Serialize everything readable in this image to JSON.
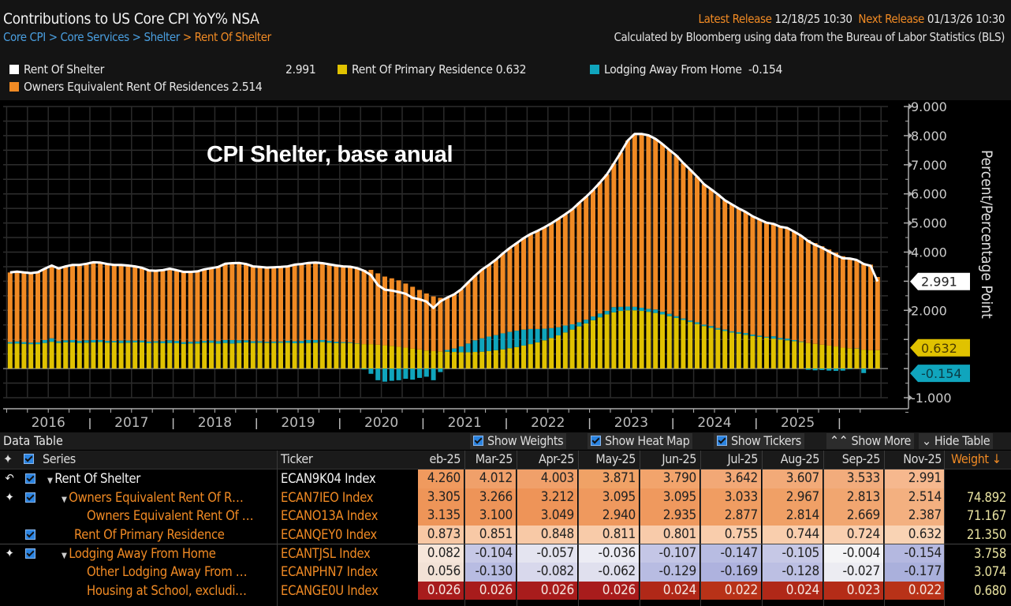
{
  "header": {
    "title": "Contributions to US Core CPI YoY% NSA",
    "breadcrumb": [
      "Core CPI",
      "Core Services",
      "Shelter",
      "Rent Of Shelter"
    ],
    "breadcrumb_sep": ">",
    "latest_release_label": "Latest Release",
    "latest_release_value": "12/18/25 10:30",
    "next_release_label": "Next Release",
    "next_release_value": "01/13/26 10:30",
    "source_note": "Calculated by Bloomberg using data from the Bureau of Labor Statistics (BLS)"
  },
  "legend": [
    {
      "name": "Rent Of Shelter",
      "value": "2.991",
      "color": "#ffffff"
    },
    {
      "name": "Rent Of Primary Residence",
      "value": "0.632",
      "color": "#e0c200"
    },
    {
      "name": "Lodging Away From Home",
      "value": "-0.154",
      "color": "#10a5bd"
    },
    {
      "name": "Owners Equivalent Rent Of Residences",
      "value": "2.514",
      "color": "#f08a24"
    }
  ],
  "overlay_title": "CPI Shelter, base anual",
  "chart_data": {
    "type": "bar",
    "stacked": true,
    "title": "Contributions to US Core CPI YoY% NSA",
    "annotation": "CPI Shelter, base anual",
    "xlabel": "",
    "ylabel": "Percent/Percentage Point",
    "ylim": [
      -1.0,
      9.0
    ],
    "yticks": [
      "9.000",
      "8.000",
      "7.000",
      "6.000",
      "5.000",
      "4.000",
      "3.000",
      "2.000",
      "1.000",
      "0.000",
      "-1.000"
    ],
    "xtick_labels": [
      "2016",
      "2017",
      "2018",
      "2019",
      "2020",
      "2021",
      "2022",
      "2023",
      "2024",
      "2025"
    ],
    "x_start": "2016-01",
    "frequency": "monthly",
    "grid": true,
    "legend_position": "top",
    "last_value_tags": [
      {
        "series": "Rent Of Shelter",
        "value": "2.991",
        "color": "#ffffff"
      },
      {
        "series": "Rent Of Primary Residence",
        "value": "0.632",
        "color": "#e0c200"
      },
      {
        "series": "Lodging Away From Home",
        "value": "-0.154",
        "color": "#10a5bd"
      }
    ],
    "series": [
      {
        "name": "Rent Of Primary Residence",
        "kind": "bar",
        "color": "#e0c200",
        "values": [
          0.86,
          0.86,
          0.85,
          0.84,
          0.84,
          0.88,
          0.92,
          0.88,
          0.9,
          0.9,
          0.88,
          0.89,
          0.9,
          0.91,
          0.89,
          0.9,
          0.88,
          0.89,
          0.9,
          0.9,
          0.87,
          0.89,
          0.87,
          0.88,
          0.87,
          0.85,
          0.86,
          0.86,
          0.89,
          0.89,
          0.86,
          0.88,
          0.86,
          0.88,
          0.9,
          0.88,
          0.89,
          0.88,
          0.88,
          0.89,
          0.89,
          0.87,
          0.87,
          0.88,
          0.89,
          0.91,
          0.89,
          0.87,
          0.88,
          0.88,
          0.86,
          0.84,
          0.84,
          0.82,
          0.8,
          0.78,
          0.75,
          0.72,
          0.69,
          0.66,
          0.62,
          0.6,
          0.59,
          0.58,
          0.57,
          0.56,
          0.56,
          0.57,
          0.58,
          0.6,
          0.63,
          0.66,
          0.7,
          0.74,
          0.79,
          0.84,
          0.9,
          0.97,
          1.05,
          1.14,
          1.24,
          1.34,
          1.45,
          1.55,
          1.66,
          1.76,
          1.86,
          1.93,
          1.98,
          2.0,
          2.0,
          1.98,
          1.95,
          1.91,
          1.86,
          1.8,
          1.74,
          1.67,
          1.6,
          1.53,
          1.46,
          1.4,
          1.34,
          1.29,
          1.24,
          1.2,
          1.16,
          1.12,
          1.09,
          1.06,
          1.03,
          1.0,
          0.97,
          0.94,
          0.91,
          0.88,
          0.85,
          0.82,
          0.79,
          0.76,
          0.72,
          0.7,
          0.68,
          0.65,
          0.63,
          0.632
        ]
      },
      {
        "name": "Owners Equivalent Rent Of Residences",
        "kind": "bar",
        "color": "#f08a24",
        "values": [
          2.39,
          2.4,
          2.39,
          2.39,
          2.41,
          2.45,
          2.5,
          2.5,
          2.54,
          2.58,
          2.61,
          2.63,
          2.67,
          2.66,
          2.64,
          2.61,
          2.6,
          2.58,
          2.55,
          2.5,
          2.44,
          2.42,
          2.44,
          2.46,
          2.43,
          2.41,
          2.4,
          2.41,
          2.46,
          2.49,
          2.55,
          2.62,
          2.64,
          2.66,
          2.62,
          2.57,
          2.55,
          2.55,
          2.55,
          2.56,
          2.56,
          2.63,
          2.64,
          2.65,
          2.66,
          2.64,
          2.63,
          2.62,
          2.6,
          2.6,
          2.58,
          2.55,
          2.55,
          2.45,
          2.36,
          2.32,
          2.28,
          2.2,
          2.12,
          2.04,
          1.96,
          1.88,
          1.84,
          1.8,
          1.86,
          1.96,
          2.1,
          2.22,
          2.36,
          2.46,
          2.59,
          2.74,
          2.88,
          3.01,
          3.14,
          3.26,
          3.37,
          3.48,
          3.6,
          3.72,
          3.82,
          3.95,
          4.1,
          4.22,
          4.34,
          4.5,
          4.69,
          4.93,
          5.3,
          5.7,
          5.94,
          5.97,
          5.96,
          5.86,
          5.76,
          5.63,
          5.52,
          5.34,
          5.18,
          5.0,
          4.82,
          4.7,
          4.58,
          4.44,
          4.36,
          4.25,
          4.16,
          4.06,
          3.99,
          3.92,
          3.86,
          3.82,
          3.8,
          3.72,
          3.63,
          3.54,
          3.46,
          3.38,
          3.3,
          3.22,
          3.14,
          3.1,
          3.04,
          2.96,
          2.94,
          2.514
        ]
      },
      {
        "name": "Lodging Away From Home",
        "kind": "bar",
        "color": "#10a5bd",
        "values": [
          0.05,
          0.07,
          0.06,
          0.05,
          0.06,
          0.1,
          0.12,
          0.06,
          0.07,
          0.08,
          0.07,
          0.08,
          0.08,
          0.07,
          0.06,
          0.05,
          0.08,
          0.07,
          0.06,
          0.06,
          0.06,
          0.05,
          0.07,
          0.09,
          0.08,
          0.06,
          0.06,
          0.07,
          0.06,
          0.07,
          0.08,
          0.1,
          0.12,
          0.09,
          0.07,
          0.06,
          0.05,
          0.04,
          0.05,
          0.04,
          0.06,
          0.07,
          0.08,
          0.1,
          0.09,
          0.07,
          0.06,
          0.05,
          0.03,
          0.02,
          0.01,
          -0.03,
          -0.18,
          -0.4,
          -0.45,
          -0.42,
          -0.4,
          -0.35,
          -0.38,
          -0.32,
          -0.28,
          -0.4,
          -0.12,
          0.06,
          0.12,
          0.2,
          0.3,
          0.4,
          0.46,
          0.5,
          0.52,
          0.55,
          0.56,
          0.56,
          0.55,
          0.52,
          0.46,
          0.4,
          0.34,
          0.28,
          0.24,
          0.18,
          0.14,
          0.13,
          0.13,
          0.13,
          0.12,
          0.18,
          0.14,
          0.13,
          0.12,
          0.11,
          0.1,
          0.12,
          0.09,
          0.08,
          0.06,
          0.05,
          0.05,
          0.06,
          0.05,
          0.06,
          0.05,
          0.05,
          0.04,
          0.05,
          0.06,
          0.05,
          0.04,
          0.03,
          0.08,
          0.05,
          0.06,
          0.04,
          0.02,
          -0.04,
          -0.06,
          -0.05,
          -0.07,
          -0.08,
          -0.07,
          -0.02,
          0.01,
          -0.154
        ]
      },
      {
        "name": "Rent Of Shelter",
        "kind": "line",
        "color": "#ffffff",
        "values": [
          3.3,
          3.33,
          3.3,
          3.28,
          3.31,
          3.43,
          3.54,
          3.44,
          3.51,
          3.56,
          3.56,
          3.6,
          3.65,
          3.64,
          3.59,
          3.56,
          3.56,
          3.54,
          3.51,
          3.46,
          3.37,
          3.36,
          3.38,
          3.43,
          3.38,
          3.32,
          3.32,
          3.34,
          3.41,
          3.45,
          3.49,
          3.6,
          3.62,
          3.63,
          3.59,
          3.51,
          3.49,
          3.47,
          3.48,
          3.49,
          3.51,
          3.57,
          3.59,
          3.63,
          3.64,
          3.62,
          3.58,
          3.54,
          3.51,
          3.5,
          3.45,
          3.36,
          3.21,
          2.87,
          2.71,
          2.68,
          2.63,
          2.57,
          2.43,
          2.38,
          2.3,
          2.08,
          2.31,
          2.44,
          2.55,
          2.72,
          2.96,
          3.19,
          3.4,
          3.56,
          3.74,
          3.95,
          4.14,
          4.31,
          4.48,
          4.62,
          4.73,
          4.85,
          4.99,
          5.14,
          5.3,
          5.47,
          5.69,
          5.9,
          6.13,
          6.39,
          6.67,
          7.04,
          7.42,
          7.83,
          8.06,
          8.06,
          8.01,
          7.89,
          7.71,
          7.51,
          7.32,
          7.06,
          6.83,
          6.59,
          6.33,
          6.16,
          5.98,
          5.78,
          5.64,
          5.5,
          5.38,
          5.23,
          5.12,
          5.01,
          4.97,
          4.87,
          4.83,
          4.7,
          4.56,
          4.38,
          4.25,
          4.15,
          4.02,
          3.9,
          3.79,
          3.78,
          3.73,
          3.59,
          3.53,
          2.991
        ]
      }
    ]
  },
  "table": {
    "title": "Data Table",
    "buttons": [
      {
        "label": "Show Weights",
        "checked": true
      },
      {
        "label": "Show Heat Map",
        "checked": true
      },
      {
        "label": "Show Tickers",
        "checked": true
      },
      {
        "label": "Show More",
        "icon": "chevrons-up-icon"
      },
      {
        "label": "Hide Table",
        "icon": "chevrons-down-icon"
      }
    ],
    "columns": {
      "series": "Series",
      "ticker": "Ticker",
      "periods": [
        "eb-25",
        "Mar-25",
        "Apr-25",
        "May-25",
        "Jun-25",
        "Jul-25",
        "Aug-25",
        "Sep-25",
        "Nov-25"
      ],
      "weight": "Weight ↓"
    },
    "rows": [
      {
        "name": "Rent Of Shelter",
        "ticker": "ECAN9K04 Index",
        "values": [
          "4.260",
          "4.012",
          "4.003",
          "3.871",
          "3.790",
          "3.642",
          "3.607",
          "3.533",
          "2.991"
        ],
        "weight": "",
        "icon": "undo-icon",
        "checked": true,
        "expandable": true,
        "indent": 0,
        "color": "#f2f2f2",
        "heat": "orange-dark"
      },
      {
        "name": "Owners Equivalent Rent Of R…",
        "ticker": "ECAN7IEO Index",
        "values": [
          "3.305",
          "3.266",
          "3.212",
          "3.095",
          "3.095",
          "3.033",
          "2.967",
          "2.813",
          "2.514"
        ],
        "weight": "74.892",
        "icon": "crosshair-icon",
        "checked": true,
        "expandable": true,
        "indent": 1,
        "color": "#f08a24",
        "heat": "orange-mid"
      },
      {
        "name": "Owners Equivalent Rent Of …",
        "ticker": "ECANO13A Index",
        "values": [
          "3.135",
          "3.100",
          "3.049",
          "2.940",
          "2.935",
          "2.877",
          "2.814",
          "2.669",
          "2.387"
        ],
        "weight": "71.167",
        "icon": "",
        "checked": false,
        "expandable": false,
        "indent": 2,
        "color": "#f08a24",
        "heat": "orange-mid"
      },
      {
        "name": "Rent Of Primary Residence",
        "ticker": "ECANQEY0 Index",
        "values": [
          "0.873",
          "0.851",
          "0.848",
          "0.811",
          "0.801",
          "0.755",
          "0.744",
          "0.724",
          "0.632"
        ],
        "weight": "21.350",
        "icon": "",
        "checked": true,
        "expandable": false,
        "indent": 1,
        "color": "#f08a24",
        "heat": "orange-light"
      },
      {
        "name": "Lodging Away From Home",
        "ticker": "ECANTJSL Index",
        "values": [
          "0.082",
          "-0.104",
          "-0.057",
          "-0.036",
          "-0.107",
          "-0.147",
          "-0.105",
          "-0.004",
          "-0.154"
        ],
        "weight": "3.758",
        "icon": "crosshair-icon",
        "checked": true,
        "expandable": true,
        "indent": 1,
        "color": "#f08a24",
        "heat": "blue"
      },
      {
        "name": "Other Lodging Away From …",
        "ticker": "ECANPHN7 Index",
        "values": [
          "0.056",
          "-0.130",
          "-0.082",
          "-0.062",
          "-0.129",
          "-0.169",
          "-0.128",
          "-0.027",
          "-0.177"
        ],
        "weight": "3.074",
        "icon": "",
        "checked": false,
        "expandable": false,
        "indent": 2,
        "color": "#f08a24",
        "heat": "blue"
      },
      {
        "name": "Housing at School, excludi…",
        "ticker": "ECANGE0U Index",
        "values": [
          "0.026",
          "0.026",
          "0.026",
          "0.026",
          "0.024",
          "0.022",
          "0.024",
          "0.023",
          "0.022"
        ],
        "weight": "0.680",
        "icon": "",
        "checked": false,
        "expandable": false,
        "indent": 2,
        "color": "#f08a24",
        "heat": "red"
      }
    ]
  }
}
